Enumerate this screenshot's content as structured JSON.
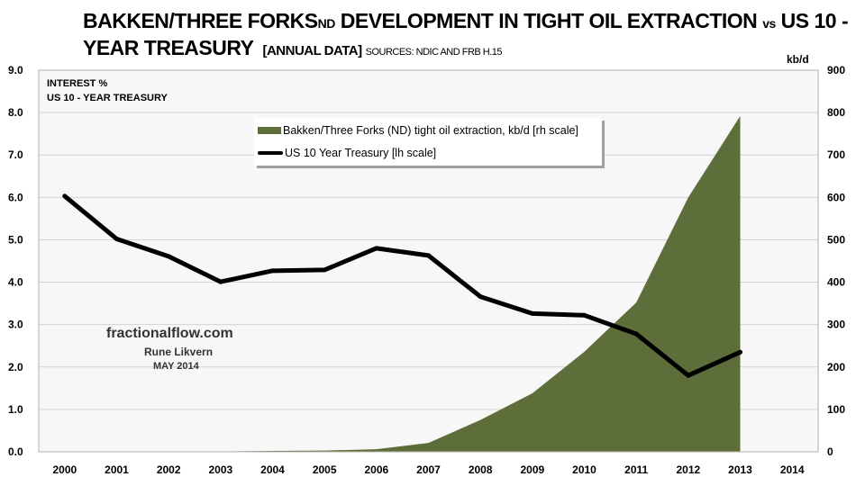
{
  "title": {
    "line1_a": "BAKKEN/THREE FORKS",
    "line1_sub": "ND",
    "line1_b": " DEVELOPMENT IN TIGHT OIL EXTRACTION ",
    "line1_vs": "vs",
    "line1_c": "  US 10 -",
    "line2_a": "YEAR TREASURY",
    "line2_b": "[ANNUAL DATA]",
    "line2_c": "SOURCES: NDIC AND FRB H.15"
  },
  "left_axis_note": [
    "INTEREST %",
    "US 10 - YEAR TREASURY"
  ],
  "right_axis_unit": "kb/d",
  "credit": {
    "site": "fractionalflow.com",
    "author": "Rune Likvern",
    "date": "MAY 2014"
  },
  "colors": {
    "area": "#5e6e3a",
    "line": "#000000",
    "plot_bg": "#f7f7f7",
    "grid": "#d4d4d4"
  },
  "chart_data": {
    "type": "area+line",
    "title": "BAKKEN/THREE FORKS ND DEVELOPMENT IN TIGHT OIL EXTRACTION vs US 10 - YEAR TREASURY [ANNUAL DATA]",
    "categories": [
      "2000",
      "2001",
      "2002",
      "2003",
      "2004",
      "2005",
      "2006",
      "2007",
      "2008",
      "2009",
      "2010",
      "2011",
      "2012",
      "2013",
      "2014"
    ],
    "y_left": {
      "label": "INTEREST %",
      "range": [
        0,
        9
      ],
      "ticks": [
        "0.0",
        "1.0",
        "2.0",
        "3.0",
        "4.0",
        "5.0",
        "6.0",
        "7.0",
        "8.0",
        "9.0"
      ]
    },
    "y_right": {
      "label": "kb/d",
      "range": [
        0,
        900
      ],
      "ticks": [
        "0",
        "100",
        "200",
        "300",
        "400",
        "500",
        "600",
        "700",
        "800",
        "900"
      ]
    },
    "grid": true,
    "legend_position": "top-center",
    "series": [
      {
        "name": "Bakken/Three Forks (ND) tight oil extraction, kb/d [rh scale]",
        "type": "area",
        "axis": "right",
        "values": [
          1,
          1,
          1,
          1,
          2,
          3,
          6,
          21,
          75,
          138,
          236,
          352,
          600,
          792,
          null
        ]
      },
      {
        "name": "US 10 Year Treasury [lh scale]",
        "type": "line",
        "axis": "left",
        "values": [
          6.03,
          5.02,
          4.61,
          4.01,
          4.27,
          4.29,
          4.8,
          4.63,
          3.66,
          3.26,
          3.22,
          2.78,
          1.8,
          2.35,
          null
        ]
      }
    ]
  }
}
